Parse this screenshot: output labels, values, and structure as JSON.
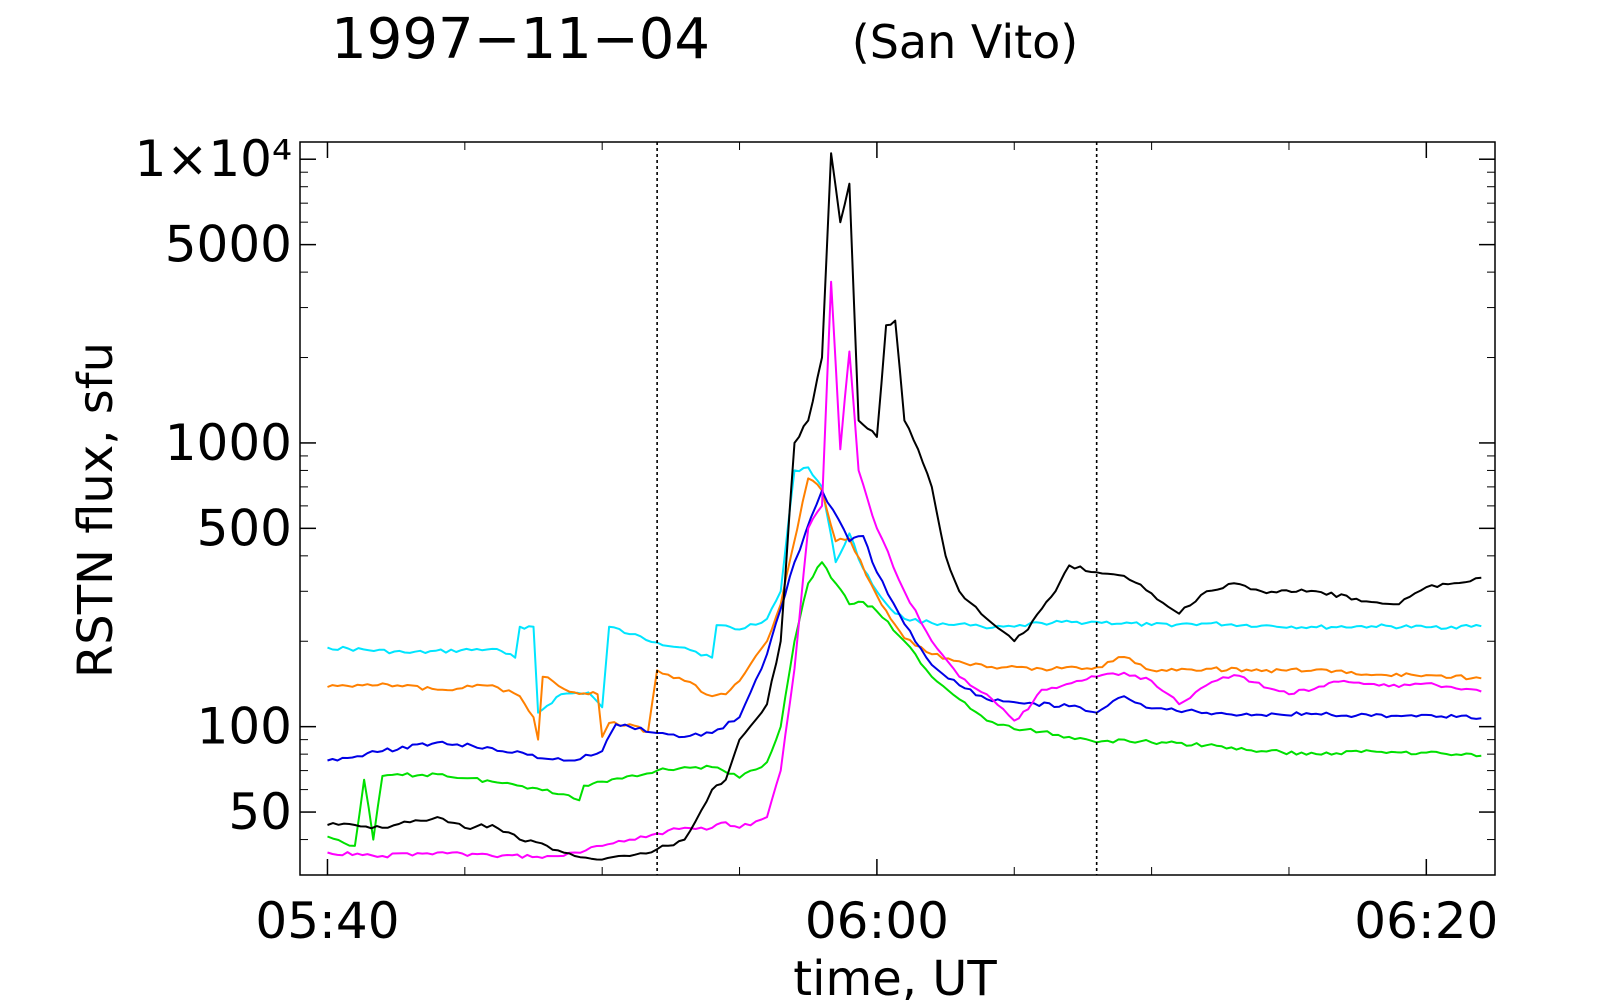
{
  "chart_data": {
    "type": "line",
    "title": "1997−11−04",
    "subtitle": "(San Vito)",
    "xlabel": "time, UT",
    "ylabel": "RSTN flux, sfu",
    "yscale": "log",
    "xlim": [
      "05:39:00",
      "06:22:30"
    ],
    "ylim": [
      30,
      11500
    ],
    "xticks": [
      "05:40",
      "06:00",
      "06:20"
    ],
    "yticks": [
      {
        "value": 50,
        "label": "50"
      },
      {
        "value": 100,
        "label": "100"
      },
      {
        "value": 500,
        "label": "500"
      },
      {
        "value": 1000,
        "label": "1000"
      },
      {
        "value": 5000,
        "label": "5000"
      },
      {
        "value": 10000,
        "label": "1×10⁴"
      }
    ],
    "vlines": [
      "05:52:00",
      "06:08:00"
    ],
    "grid": false,
    "legend": false,
    "series": [
      {
        "color": "#00e5ff",
        "points": [
          [
            "05:40",
            190
          ],
          [
            "05:43",
            182
          ],
          [
            "05:46",
            188
          ],
          [
            "05:46:50",
            175
          ],
          [
            "05:47:00",
            225
          ],
          [
            "05:47:30",
            225
          ],
          [
            "05:47:40",
            112
          ],
          [
            "05:48:30",
            130
          ],
          [
            "05:49:30",
            132
          ],
          [
            "05:50",
            117
          ],
          [
            "05:50:15",
            225
          ],
          [
            "05:51",
            212
          ],
          [
            "05:52",
            198
          ],
          [
            "05:53",
            190
          ],
          [
            "05:54",
            175
          ],
          [
            "05:54:10",
            228
          ],
          [
            "05:55",
            220
          ],
          [
            "05:56",
            240
          ],
          [
            "05:56:30",
            300
          ],
          [
            "05:57:00",
            800
          ],
          [
            "05:57:30",
            820
          ],
          [
            "05:58",
            700
          ],
          [
            "05:58:30",
            380
          ],
          [
            "05:59",
            480
          ],
          [
            "05:59:30",
            360
          ],
          [
            "06:00",
            300
          ],
          [
            "06:00:30",
            260
          ],
          [
            "06:01",
            240
          ],
          [
            "06:02",
            232
          ],
          [
            "06:03",
            230
          ],
          [
            "06:04",
            222
          ],
          [
            "06:05",
            225
          ],
          [
            "06:06",
            232
          ],
          [
            "06:08",
            234
          ],
          [
            "06:10",
            228
          ],
          [
            "06:12",
            231
          ],
          [
            "06:14",
            227
          ],
          [
            "06:16",
            224
          ],
          [
            "06:18",
            226
          ],
          [
            "06:20",
            224
          ],
          [
            "06:22",
            226
          ]
        ]
      },
      {
        "color": "#ff8000",
        "points": [
          [
            "05:40",
            138
          ],
          [
            "05:42",
            142
          ],
          [
            "05:44",
            135
          ],
          [
            "05:46",
            140
          ],
          [
            "05:47",
            128
          ],
          [
            "05:47:30",
            108
          ],
          [
            "05:47:40",
            90
          ],
          [
            "05:47:50",
            150
          ],
          [
            "05:49",
            132
          ],
          [
            "05:49:50",
            130
          ],
          [
            "05:50",
            92
          ],
          [
            "05:50:15",
            103
          ],
          [
            "05:51",
            102
          ],
          [
            "05:51:40",
            96
          ],
          [
            "05:52",
            158
          ],
          [
            "05:53",
            145
          ],
          [
            "05:54",
            128
          ],
          [
            "05:54:30",
            130
          ],
          [
            "05:55",
            145
          ],
          [
            "05:56",
            200
          ],
          [
            "05:56:30",
            270
          ],
          [
            "05:57:30",
            750
          ],
          [
            "05:58",
            680
          ],
          [
            "05:58:30",
            450
          ],
          [
            "05:59",
            460
          ],
          [
            "06:00",
            290
          ],
          [
            "06:00:30",
            240
          ],
          [
            "06:01",
            205
          ],
          [
            "06:02",
            180
          ],
          [
            "06:03",
            170
          ],
          [
            "06:04",
            162
          ],
          [
            "06:06",
            160
          ],
          [
            "06:08",
            162
          ],
          [
            "06:09",
            176
          ],
          [
            "06:10",
            158
          ],
          [
            "06:12",
            160
          ],
          [
            "06:14",
            157
          ],
          [
            "06:16",
            159
          ],
          [
            "06:18",
            152
          ],
          [
            "06:20",
            152
          ],
          [
            "06:22",
            148
          ]
        ]
      },
      {
        "color": "#0000e6",
        "points": [
          [
            "05:40",
            76
          ],
          [
            "05:42",
            82
          ],
          [
            "05:44",
            88
          ],
          [
            "05:46",
            84
          ],
          [
            "05:48",
            77
          ],
          [
            "05:49",
            76
          ],
          [
            "05:50",
            82
          ],
          [
            "05:50:30",
            102
          ],
          [
            "05:51",
            100
          ],
          [
            "05:52",
            95
          ],
          [
            "05:53",
            92
          ],
          [
            "05:54",
            95
          ],
          [
            "05:55",
            108
          ],
          [
            "05:56",
            180
          ],
          [
            "05:56:30",
            260
          ],
          [
            "05:57",
            380
          ],
          [
            "05:58",
            680
          ],
          [
            "05:59",
            450
          ],
          [
            "05:59:30",
            470
          ],
          [
            "06:00",
            350
          ],
          [
            "06:01",
            230
          ],
          [
            "06:02",
            165
          ],
          [
            "06:03",
            140
          ],
          [
            "06:04",
            125
          ],
          [
            "06:05",
            122
          ],
          [
            "06:07",
            118
          ],
          [
            "06:08",
            112
          ],
          [
            "06:09",
            128
          ],
          [
            "06:10",
            116
          ],
          [
            "06:12",
            112
          ],
          [
            "06:14",
            110
          ],
          [
            "06:16",
            111
          ],
          [
            "06:18",
            109
          ],
          [
            "06:20",
            110
          ],
          [
            "06:22",
            107
          ]
        ]
      },
      {
        "color": "#00e000",
        "points": [
          [
            "05:40",
            41
          ],
          [
            "05:41",
            38
          ],
          [
            "05:41:20",
            65
          ],
          [
            "05:41:40",
            40
          ],
          [
            "05:42",
            67
          ],
          [
            "05:44",
            68
          ],
          [
            "05:46",
            64
          ],
          [
            "05:48",
            60
          ],
          [
            "05:49:10",
            55
          ],
          [
            "05:49:20",
            62
          ],
          [
            "05:50",
            64
          ],
          [
            "05:52",
            70
          ],
          [
            "05:53",
            72
          ],
          [
            "05:54",
            72
          ],
          [
            "05:55",
            66
          ],
          [
            "05:56",
            75
          ],
          [
            "05:56:30",
            100
          ],
          [
            "05:57",
            200
          ],
          [
            "05:57:30",
            320
          ],
          [
            "05:58",
            380
          ],
          [
            "05:58:30",
            320
          ],
          [
            "05:59",
            270
          ],
          [
            "05:59:30",
            275
          ],
          [
            "06:00",
            255
          ],
          [
            "06:01",
            200
          ],
          [
            "06:02",
            150
          ],
          [
            "06:03",
            125
          ],
          [
            "06:04",
            105
          ],
          [
            "06:05",
            98
          ],
          [
            "06:06",
            96
          ],
          [
            "06:07",
            92
          ],
          [
            "06:08",
            88
          ],
          [
            "06:09",
            90
          ],
          [
            "06:10",
            88
          ],
          [
            "06:12",
            86
          ],
          [
            "06:14",
            82
          ],
          [
            "06:16",
            80
          ],
          [
            "06:18",
            82
          ],
          [
            "06:20",
            81
          ],
          [
            "06:22",
            79
          ]
        ]
      },
      {
        "color": "#ff00ff",
        "points": [
          [
            "05:40",
            36
          ],
          [
            "05:42",
            35
          ],
          [
            "05:44",
            36
          ],
          [
            "05:46",
            35
          ],
          [
            "05:48",
            35
          ],
          [
            "05:49",
            36
          ],
          [
            "05:50",
            38
          ],
          [
            "05:51",
            40
          ],
          [
            "05:52",
            42
          ],
          [
            "05:53",
            44
          ],
          [
            "05:54",
            44
          ],
          [
            "05:54:30",
            46
          ],
          [
            "05:55",
            44
          ],
          [
            "05:56",
            48
          ],
          [
            "05:56:30",
            70
          ],
          [
            "05:57",
            160
          ],
          [
            "05:57:30",
            500
          ],
          [
            "05:58",
            600
          ],
          [
            "05:58:20",
            3700
          ],
          [
            "05:58:40",
            950
          ],
          [
            "05:59",
            2100
          ],
          [
            "05:59:20",
            800
          ],
          [
            "06:00",
            500
          ],
          [
            "06:01",
            300
          ],
          [
            "06:02",
            200
          ],
          [
            "06:03",
            150
          ],
          [
            "06:04",
            130
          ],
          [
            "06:05",
            105
          ],
          [
            "06:05:30",
            115
          ],
          [
            "06:06",
            135
          ],
          [
            "06:08",
            150
          ],
          [
            "06:09",
            155
          ],
          [
            "06:10",
            145
          ],
          [
            "06:11",
            120
          ],
          [
            "06:12",
            140
          ],
          [
            "06:13",
            152
          ],
          [
            "06:15",
            130
          ],
          [
            "06:17",
            145
          ],
          [
            "06:19",
            138
          ],
          [
            "06:20",
            142
          ],
          [
            "06:22",
            133
          ]
        ]
      },
      {
        "color": "#000000",
        "points": [
          [
            "05:40",
            45
          ],
          [
            "05:41",
            45
          ],
          [
            "05:42",
            44
          ],
          [
            "05:43",
            46
          ],
          [
            "05:44",
            48
          ],
          [
            "05:45",
            44
          ],
          [
            "05:46",
            45
          ],
          [
            "05:47",
            40
          ],
          [
            "05:48",
            38
          ],
          [
            "05:49",
            35
          ],
          [
            "05:50",
            34
          ],
          [
            "05:51",
            35
          ],
          [
            "05:52",
            37
          ],
          [
            "05:53",
            40
          ],
          [
            "05:54",
            60
          ],
          [
            "05:54:30",
            65
          ],
          [
            "05:55",
            90
          ],
          [
            "05:56",
            120
          ],
          [
            "05:56:30",
            200
          ],
          [
            "05:57",
            1000
          ],
          [
            "05:57:30",
            1200
          ],
          [
            "05:58",
            2000
          ],
          [
            "05:58:20",
            10500
          ],
          [
            "05:58:40",
            6000
          ],
          [
            "05:59",
            8200
          ],
          [
            "05:59:20",
            1200
          ],
          [
            "06:00",
            1050
          ],
          [
            "06:00:20",
            2600
          ],
          [
            "06:00:40",
            2700
          ],
          [
            "06:01",
            1200
          ],
          [
            "06:01:30",
            950
          ],
          [
            "06:02",
            700
          ],
          [
            "06:02:30",
            400
          ],
          [
            "06:03",
            300
          ],
          [
            "06:04",
            240
          ],
          [
            "06:05",
            200
          ],
          [
            "06:05:30",
            220
          ],
          [
            "06:06",
            260
          ],
          [
            "06:06:30",
            300
          ],
          [
            "06:07",
            370
          ],
          [
            "06:08",
            350
          ],
          [
            "06:09",
            340
          ],
          [
            "06:10",
            295
          ],
          [
            "06:11",
            250
          ],
          [
            "06:12",
            300
          ],
          [
            "06:13",
            320
          ],
          [
            "06:14",
            300
          ],
          [
            "06:16",
            300
          ],
          [
            "06:18",
            275
          ],
          [
            "06:19",
            270
          ],
          [
            "06:20",
            310
          ],
          [
            "06:21",
            320
          ],
          [
            "06:22",
            335
          ]
        ]
      }
    ]
  }
}
